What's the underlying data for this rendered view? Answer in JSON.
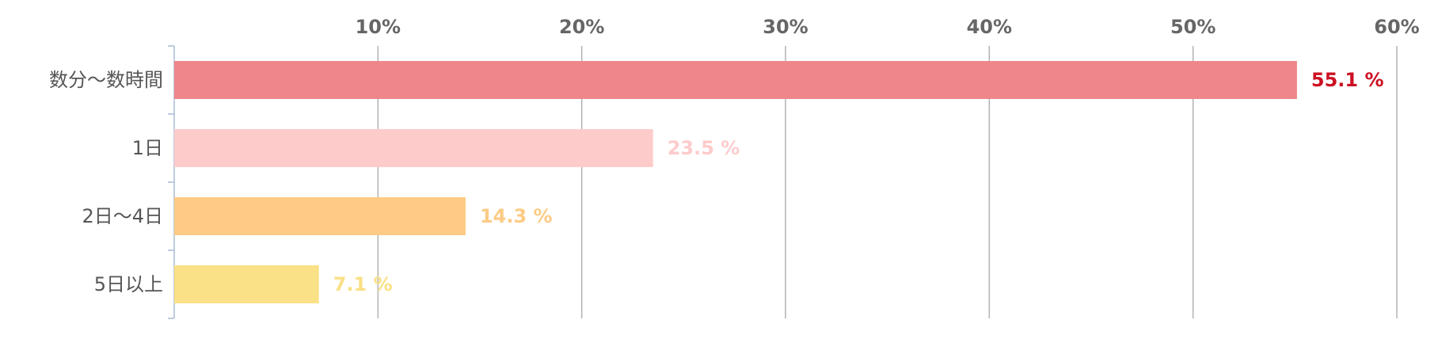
{
  "chart_data": {
    "type": "bar",
    "orientation": "horizontal",
    "title": "",
    "xlabel": "",
    "ylabel": "",
    "categories": [
      "数分～数時間",
      "1日",
      "2日～4日",
      "5日以上"
    ],
    "values": [
      55.1,
      23.5,
      14.3,
      7.1
    ],
    "value_labels": [
      "55.1 %",
      "23.5 %",
      "14.3 %",
      "7.1 %"
    ],
    "bar_colors": [
      "#EE868C",
      "#FECBCB",
      "#FDCB85",
      "#FAE086"
    ],
    "label_colors": [
      "#CC1122",
      "#FECBCB",
      "#FDCB85",
      "#FAE086"
    ],
    "xlim": [
      0,
      60
    ],
    "x_ticks": [
      10,
      20,
      30,
      40,
      50,
      60
    ],
    "x_tick_labels": [
      "10%",
      "20%",
      "30%",
      "40%",
      "50%",
      "60%"
    ],
    "x_axis_position": "top",
    "grid": true,
    "legend": "none"
  }
}
